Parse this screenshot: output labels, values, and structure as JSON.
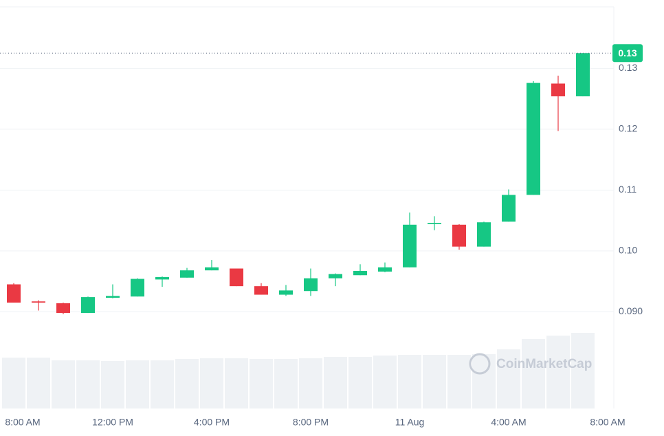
{
  "chart_data": {
    "type": "candlestick",
    "categories": [
      "8:00 AM",
      null,
      null,
      null,
      "12:00 PM",
      null,
      null,
      null,
      "4:00 PM",
      null,
      null,
      null,
      "8:00 PM",
      null,
      null,
      null,
      "11 Aug",
      null,
      null,
      null,
      "4:00 AM",
      null,
      null,
      null,
      "8:00 AM"
    ],
    "open": [
      0.0945,
      0.0917,
      0.0914,
      0.0898,
      0.0923,
      0.0925,
      0.0953,
      0.0956,
      0.0968,
      0.0971,
      0.0942,
      0.0928,
      0.0934,
      0.0955,
      0.096,
      0.0966,
      0.0973,
      0.1044,
      0.1043,
      0.1007,
      0.1048,
      0.1092,
      0.1275,
      0.1254,
      null
    ],
    "high": [
      0.0947,
      0.0919,
      0.0915,
      0.0925,
      0.0945,
      0.0955,
      0.0958,
      0.0972,
      0.0985,
      0.0971,
      0.0947,
      0.0944,
      0.0971,
      0.0963,
      0.0978,
      0.0981,
      0.1063,
      0.1057,
      0.1044,
      0.1048,
      0.1101,
      0.1279,
      0.1288,
      0.1325,
      null
    ],
    "low": [
      0.0915,
      0.0902,
      0.0896,
      0.0898,
      0.0922,
      0.0925,
      0.0941,
      0.0956,
      0.0968,
      0.0942,
      0.0928,
      0.0926,
      0.0926,
      0.0942,
      0.096,
      0.0965,
      0.0973,
      0.1034,
      0.1002,
      0.1007,
      0.1048,
      0.1092,
      0.1197,
      0.1254,
      null
    ],
    "close": [
      0.0915,
      0.0915,
      0.0898,
      0.0924,
      0.0926,
      0.0954,
      0.0957,
      0.0968,
      0.0973,
      0.0942,
      0.0928,
      0.0935,
      0.0955,
      0.0962,
      0.0967,
      0.0973,
      0.1043,
      0.1046,
      0.1007,
      0.1047,
      0.1092,
      0.1276,
      0.1254,
      0.1325,
      null
    ],
    "volume": [
      74,
      74,
      70,
      70,
      69,
      70,
      70,
      72,
      73,
      73,
      72,
      72,
      73,
      75,
      75,
      77,
      78,
      78,
      78,
      79,
      86,
      101,
      106,
      110,
      null
    ],
    "up_color": "#16c784",
    "down_color": "#ea3943",
    "volume_color": "#eff2f5",
    "ylim": [
      0.0741,
      0.1401
    ],
    "yticks": [
      {
        "value": 0.09,
        "label": "0.090"
      },
      {
        "value": 0.1,
        "label": "0.10"
      },
      {
        "value": 0.11,
        "label": "0.11"
      },
      {
        "value": 0.12,
        "label": "0.12"
      },
      {
        "value": 0.13,
        "label": "0.13"
      }
    ],
    "grid": true,
    "current_price": {
      "value": 0.1325,
      "label": "0.13"
    },
    "watermark": "CoinMarketCap"
  }
}
